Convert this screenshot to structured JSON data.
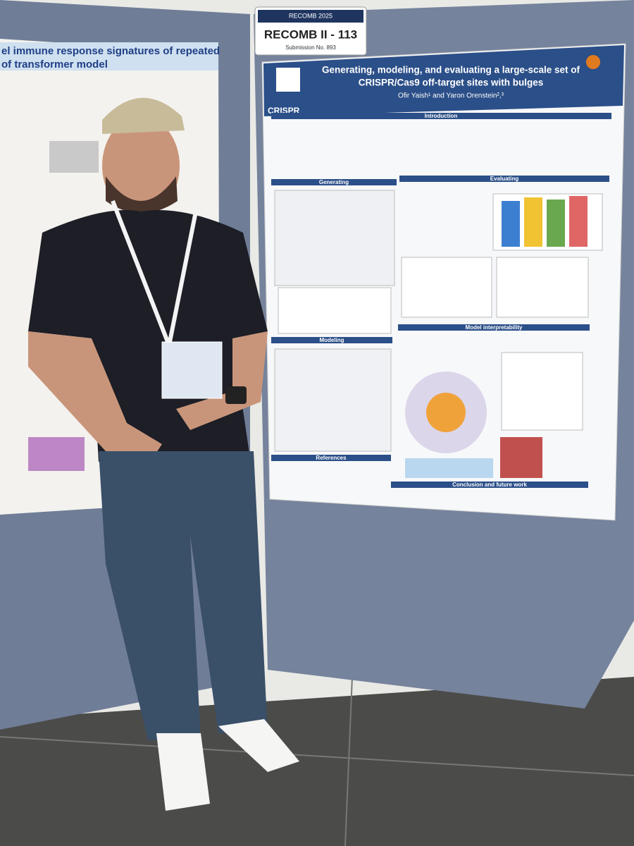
{
  "sign": {
    "banner": "RECOMB 2025",
    "title": "RECOMB II - 113",
    "submission": "Submission No. 893"
  },
  "poster": {
    "title_line1": "Generating, modeling, and evaluating a large-scale set of",
    "title_line2": "CRISPR/Cas9 off-target sites with bulges",
    "authors": "Ofir Yaish¹ and Yaron Orenstein²,³",
    "logo": "CRISPR",
    "sections": [
      "Introduction",
      "Generating",
      "Evaluating",
      "Model interpretability",
      "Modeling",
      "References",
      "Conclusion and future work"
    ]
  },
  "left_poster": {
    "title_line1": "el immune response signatures of repeated",
    "title_line2": "of transformer model"
  }
}
